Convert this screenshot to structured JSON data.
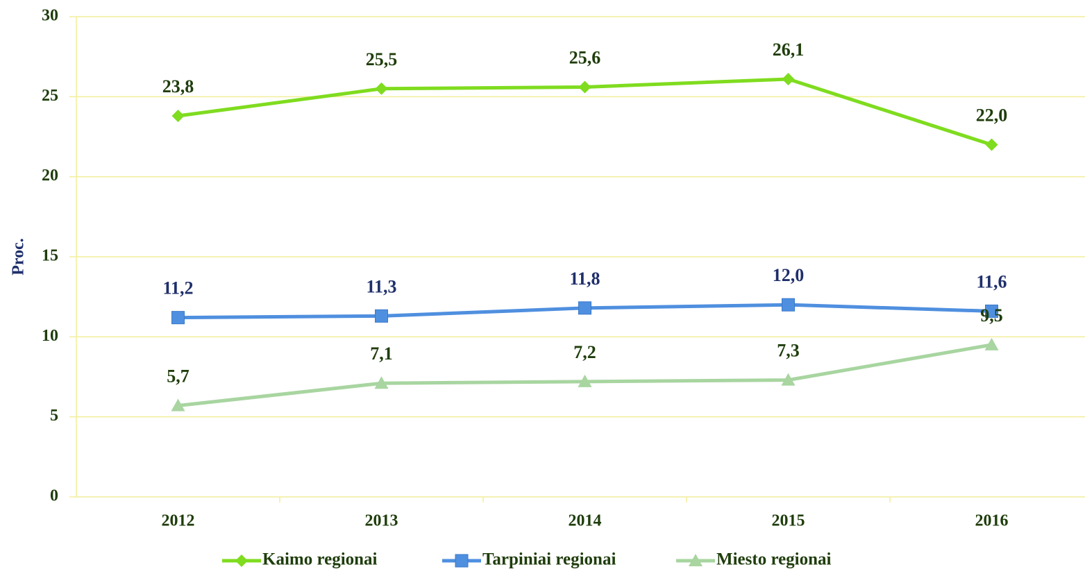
{
  "chart_data": {
    "type": "line",
    "y_label": "Proc.",
    "categories": [
      "2012",
      "2013",
      "2014",
      "2015",
      "2016"
    ],
    "series": [
      {
        "name": "Kaimo regionai",
        "color": "#7fdc1f",
        "marker": "diamond",
        "label_color": "#1f3d0c",
        "values": [
          23.8,
          25.5,
          25.6,
          26.1,
          22.0
        ],
        "value_labels": [
          "23,8",
          "25,5",
          "25,6",
          "26,1",
          "22,0"
        ]
      },
      {
        "name": "Tarpiniai regionai",
        "color": "#4f8fdf",
        "marker": "square",
        "label_color": "#1f2f6b",
        "values": [
          11.2,
          11.3,
          11.8,
          12.0,
          11.6
        ],
        "value_labels": [
          "11,2",
          "11,3",
          "11,8",
          "12,0",
          "11,6"
        ]
      },
      {
        "name": "Miesto regionai",
        "color": "#a8d5a0",
        "marker": "triangle",
        "label_color": "#1f3d0c",
        "values": [
          5.7,
          7.1,
          7.2,
          7.3,
          9.5
        ],
        "value_labels": [
          "5,7",
          "7,1",
          "7,2",
          "7,3",
          "9,5"
        ]
      }
    ],
    "ylim": [
      0,
      30
    ],
    "yticks": [
      0,
      5,
      10,
      15,
      20,
      25,
      30
    ],
    "grid": true,
    "legend": "bottom"
  }
}
